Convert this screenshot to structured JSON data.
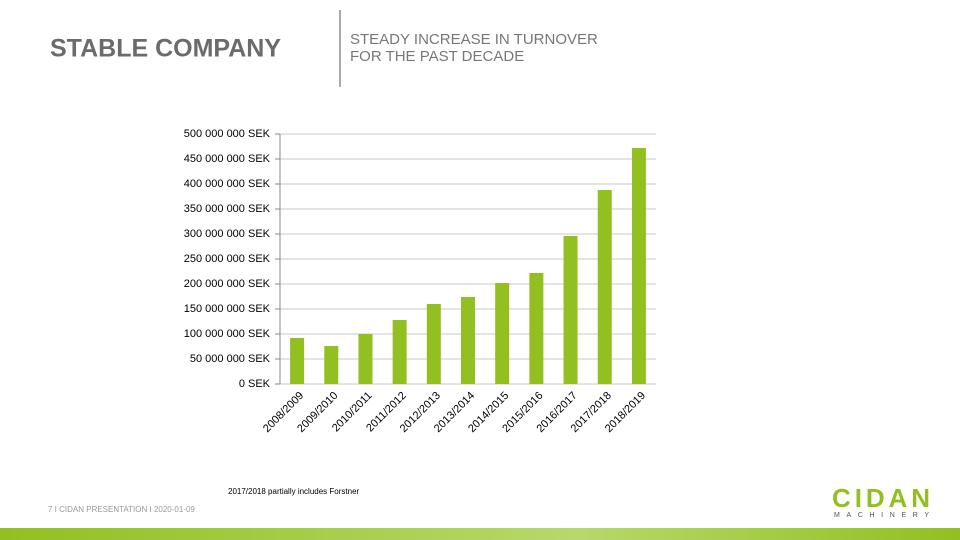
{
  "slide": {
    "title": "STABLE COMPANY",
    "subtitle": [
      "STEADY INCREASE IN TURNOVER",
      "FOR THE PAST DECADE"
    ],
    "note": "2017/2018 partially includes Forstner",
    "footer": "7 I CIDAN PRESENTATION  I 2020-01-09",
    "logo": {
      "name": "CIDAN",
      "tagline": "MACHINERY"
    }
  },
  "chart_data": {
    "type": "bar",
    "categories": [
      "2008/2009",
      "2009/2010",
      "2010/2011",
      "2011/2012",
      "2012/2013",
      "2013/2014",
      "2014/2015",
      "2015/2016",
      "2016/2017",
      "2017/2018",
      "2018/2019"
    ],
    "values": [
      92000000,
      76000000,
      100000000,
      128000000,
      160000000,
      174000000,
      202000000,
      222000000,
      296000000,
      388000000,
      472000000
    ],
    "color": "#92c020",
    "ylim": [
      0,
      500000000
    ],
    "yticks": [
      {
        "value": 0,
        "label": "0 SEK"
      },
      {
        "value": 50000000,
        "label": "50 000 000 SEK"
      },
      {
        "value": 100000000,
        "label": "100 000 000 SEK"
      },
      {
        "value": 150000000,
        "label": "150 000 000 SEK"
      },
      {
        "value": 200000000,
        "label": "200 000 000 SEK"
      },
      {
        "value": 250000000,
        "label": "250 000 000 SEK"
      },
      {
        "value": 300000000,
        "label": "300 000 000 SEK"
      },
      {
        "value": 350000000,
        "label": "350 000 000 SEK"
      },
      {
        "value": 400000000,
        "label": "400 000 000 SEK"
      },
      {
        "value": 450000000,
        "label": "450 000 000 SEK"
      },
      {
        "value": 500000000,
        "label": "500 000 000 SEK"
      }
    ],
    "grid": true
  }
}
